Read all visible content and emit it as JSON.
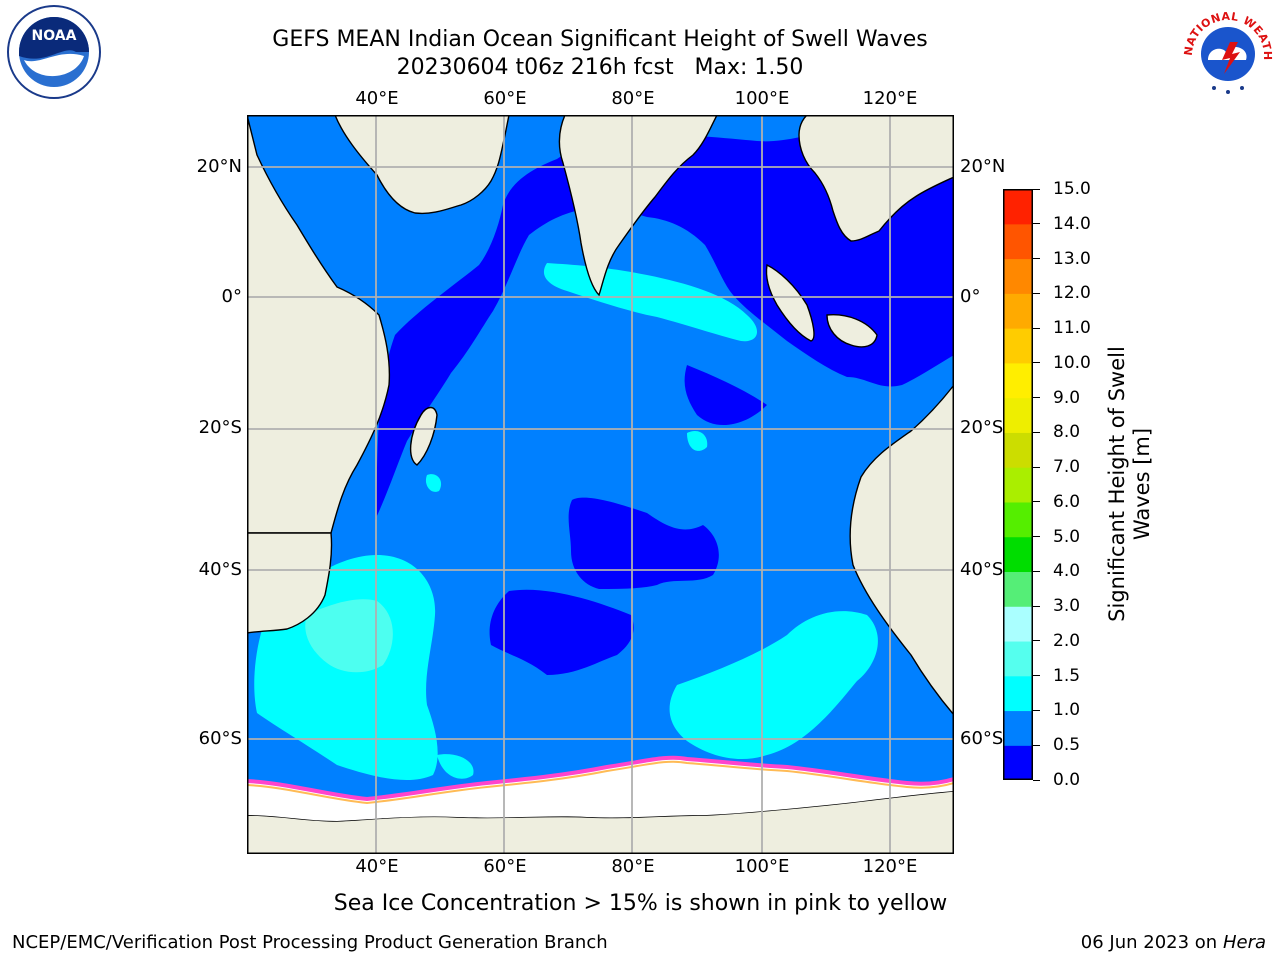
{
  "title": {
    "line1": "GEFS MEAN Indian Ocean Significant Height of Swell Waves",
    "line2": "20230604 t06z 216h fcst   Max: 1.50"
  },
  "map": {
    "lon_ticks": [
      "40°E",
      "60°E",
      "80°E",
      "100°E",
      "120°E"
    ],
    "lat_ticks": [
      "20°N",
      "0°",
      "20°S",
      "40°S",
      "60°S"
    ],
    "land_color": "#eeeedf",
    "ocean_color": "#0080ff",
    "ice_color": "#ffffff"
  },
  "colorbar": {
    "label_line1": "Significant Height of Swell",
    "label_line2": "Waves [m]",
    "ticks": [
      "0.0",
      "0.5",
      "1.0",
      "1.5",
      "2.0",
      "3.0",
      "4.0",
      "5.0",
      "6.0",
      "7.0",
      "8.0",
      "9.0",
      "10.0",
      "11.0",
      "12.0",
      "13.0",
      "14.0",
      "15.0"
    ],
    "colors": [
      "#0000ff",
      "#0080ff",
      "#00ffff",
      "#55ffee",
      "#aaffff",
      "#55ee77",
      "#00dd00",
      "#55ee00",
      "#aaee00",
      "#ccdd00",
      "#eeee00",
      "#ffee00",
      "#ffcc00",
      "#ffaa00",
      "#ff8800",
      "#ff5500",
      "#ff2200"
    ]
  },
  "note": "Sea Ice Concentration > 15% is shown in pink to yellow",
  "footer": {
    "left": "NCEP/EMC/Verification Post Processing Product Generation Branch",
    "right_date": "06 Jun 2023 on",
    "right_machine": "Hera"
  },
  "logos": {
    "noaa_text": "NOAA",
    "nws_text": "NATIONAL WEATHER SERVICE"
  }
}
